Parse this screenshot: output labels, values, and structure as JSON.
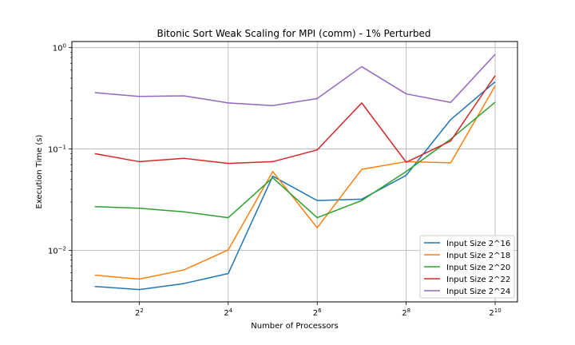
{
  "chart_data": {
    "type": "line",
    "title": "Bitonic Sort Weak Scaling for MPI (comm) - 1% Perturbed",
    "xlabel": "Number of Processors",
    "ylabel": "Execution Time (s)",
    "xscale": "log2",
    "yscale": "log10",
    "x": [
      2,
      4,
      8,
      16,
      32,
      64,
      128,
      256,
      512,
      1024
    ],
    "xlim": [
      1.4,
      1450
    ],
    "ylim": [
      0.0031,
      1.15
    ],
    "xticks": [
      {
        "value": 4,
        "base": "2",
        "exp": "2"
      },
      {
        "value": 16,
        "base": "2",
        "exp": "4"
      },
      {
        "value": 64,
        "base": "2",
        "exp": "6"
      },
      {
        "value": 256,
        "base": "2",
        "exp": "8"
      },
      {
        "value": 1024,
        "base": "2",
        "exp": "10"
      }
    ],
    "yticks": [
      {
        "value": 0.01,
        "base": "10",
        "exp": "−2"
      },
      {
        "value": 0.1,
        "base": "10",
        "exp": "−1"
      },
      {
        "value": 1,
        "base": "10",
        "exp": "0"
      }
    ],
    "grid": true,
    "legend_position": "lower-right",
    "series": [
      {
        "name": "Input Size 2^16",
        "color": "#1f77b4",
        "values": [
          0.0044,
          0.0041,
          0.0047,
          0.0059,
          0.054,
          0.031,
          0.032,
          0.055,
          0.195,
          0.46
        ]
      },
      {
        "name": "Input Size 2^18",
        "color": "#ff7f0e",
        "values": [
          0.0057,
          0.0052,
          0.0064,
          0.0101,
          0.06,
          0.0167,
          0.063,
          0.075,
          0.073,
          0.42
        ]
      },
      {
        "name": "Input Size 2^20",
        "color": "#2ca02c",
        "values": [
          0.027,
          0.026,
          0.024,
          0.021,
          0.052,
          0.021,
          0.031,
          0.06,
          0.125,
          0.29
        ]
      },
      {
        "name": "Input Size 2^22",
        "color": "#d62728",
        "values": [
          0.09,
          0.075,
          0.081,
          0.072,
          0.075,
          0.098,
          0.285,
          0.074,
          0.12,
          0.53
        ]
      },
      {
        "name": "Input Size 2^24",
        "color": "#9467bd",
        "values": [
          0.36,
          0.33,
          0.335,
          0.285,
          0.268,
          0.315,
          0.65,
          0.35,
          0.288,
          0.86
        ]
      }
    ]
  }
}
